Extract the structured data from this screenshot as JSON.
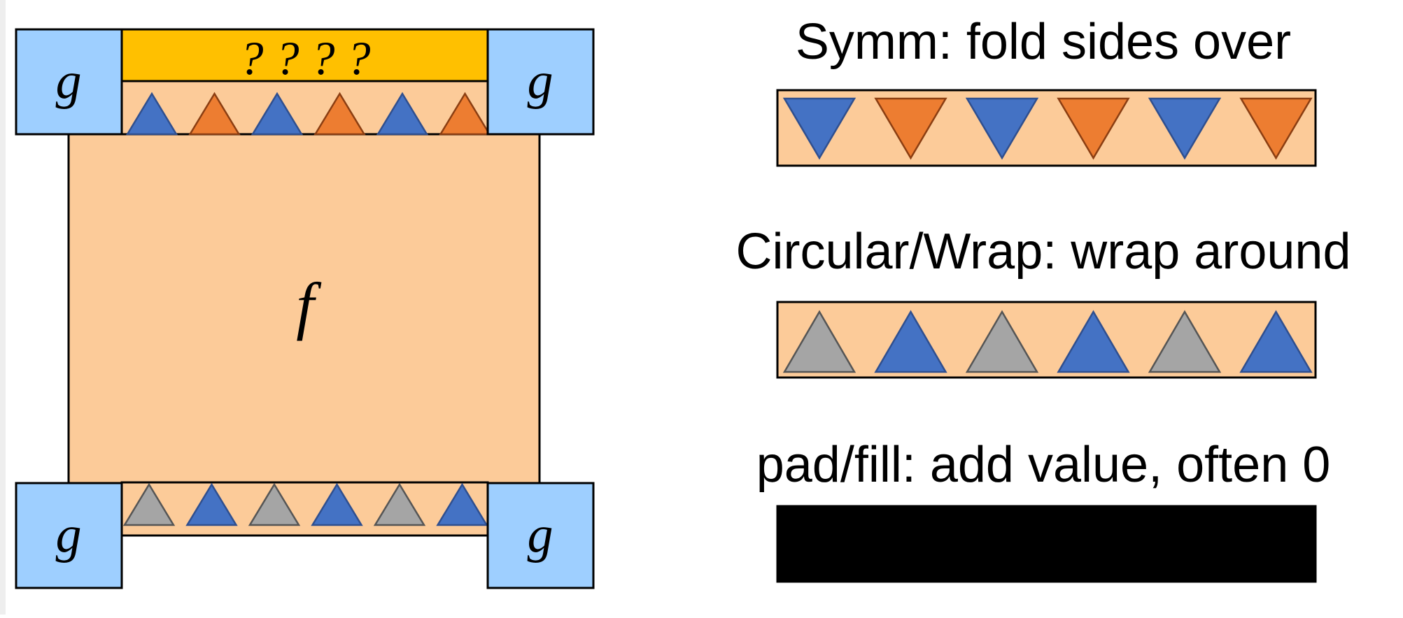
{
  "diagram": {
    "main_label": "f",
    "corner_label": "g",
    "unknown_label": "? ? ? ?",
    "top_row_triangles": [
      "blue",
      "orange",
      "blue",
      "orange",
      "blue",
      "orange"
    ],
    "bottom_row_triangles": [
      "gray",
      "blue",
      "gray",
      "blue",
      "gray",
      "blue"
    ]
  },
  "panels": [
    {
      "title": "Symm: fold sides over",
      "orientation": "down",
      "triangles": [
        "blue",
        "orange",
        "blue",
        "orange",
        "blue",
        "orange"
      ]
    },
    {
      "title": "Circular/Wrap: wrap around",
      "orientation": "up",
      "triangles": [
        "gray",
        "blue",
        "gray",
        "blue",
        "gray",
        "blue"
      ]
    },
    {
      "title": "pad/fill: add value, often 0",
      "orientation": "none",
      "fill": "black"
    }
  ],
  "colors": {
    "peach": "#FCCB99",
    "light_blue": "#9ECFFF",
    "gold": "#FFC000",
    "blue": "#4472C4",
    "orange": "#ED7D31",
    "gray": "#A5A5A5",
    "black": "#000000"
  }
}
